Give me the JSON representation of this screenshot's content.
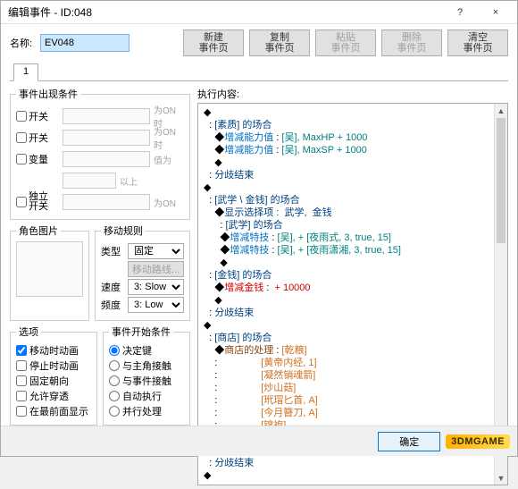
{
  "window": {
    "title": "编辑事件 - ID:048",
    "help": "?",
    "close": "×"
  },
  "name": {
    "label": "名称:",
    "value": "EV048"
  },
  "page_buttons": {
    "new": "新建\n事件页",
    "copy": "复制\n事件页",
    "paste": "粘贴\n事件页",
    "delete": "删除\n事件页",
    "clear": "清空\n事件页"
  },
  "tab": {
    "label": "1"
  },
  "conditions": {
    "legend": "事件出现条件",
    "switch1": {
      "label": "开关",
      "suffix": "为ON时"
    },
    "switch2": {
      "label": "开关",
      "suffix": "为ON时"
    },
    "variable": {
      "label": "变量",
      "suffix": "值为",
      "suffix2": "以上"
    },
    "selfswitch": {
      "label": "独立\n开关",
      "suffix": "为ON"
    }
  },
  "graphic": {
    "legend": "角色图片"
  },
  "movement": {
    "legend": "移动规则",
    "type": {
      "label": "类型",
      "value": "固定"
    },
    "route": {
      "label": "移动路线..."
    },
    "speed": {
      "label": "速度",
      "value": "3: Slow"
    },
    "freq": {
      "label": "频度",
      "value": "3: Low"
    }
  },
  "options": {
    "legend": "选项",
    "items": [
      "移动时动画",
      "停止时动画",
      "固定朝向",
      "允许穿透",
      "在最前面显示"
    ],
    "checked": [
      true,
      false,
      false,
      false,
      false
    ]
  },
  "trigger": {
    "legend": "事件开始条件",
    "items": [
      "决定键",
      "与主角接触",
      "与事件接触",
      "自动执行",
      "并行处理"
    ],
    "selected": 0
  },
  "exec": {
    "label": "执行内容:",
    "lines": [
      {
        "indent": 0,
        "pre": "◆",
        "segs": []
      },
      {
        "indent": 1,
        "pre": ": ",
        "segs": [
          [
            "[素质] 的场合",
            "col-dkblue"
          ]
        ]
      },
      {
        "indent": 2,
        "pre": "◆",
        "segs": [
          [
            "增减能力值",
            "col-blue"
          ],
          [
            " : ",
            ""
          ],
          [
            "[吴], MaxHP + 1000",
            "col-teal"
          ]
        ]
      },
      {
        "indent": 2,
        "pre": "◆",
        "segs": [
          [
            "增减能力值",
            "col-blue"
          ],
          [
            " : ",
            ""
          ],
          [
            "[吴], MaxSP + 1000",
            "col-teal"
          ]
        ]
      },
      {
        "indent": 2,
        "pre": "◆",
        "segs": []
      },
      {
        "indent": 1,
        "pre": ": ",
        "segs": [
          [
            "分歧结束",
            "col-dkblue"
          ]
        ]
      },
      {
        "indent": 0,
        "pre": "◆",
        "segs": []
      },
      {
        "indent": 1,
        "pre": ": ",
        "segs": [
          [
            "[武学 \\ 金钱] 的场合",
            "col-dkblue"
          ]
        ]
      },
      {
        "indent": 2,
        "pre": "◆",
        "segs": [
          [
            "显示选择项 :  武学,  金钱",
            "col-dkblue"
          ]
        ]
      },
      {
        "indent": 2,
        "pre": "  : ",
        "segs": [
          [
            "[武学] 的场合",
            "col-dkblue"
          ]
        ]
      },
      {
        "indent": 3,
        "pre": "◆",
        "segs": [
          [
            "增减特技",
            "col-blue"
          ],
          [
            " : ",
            ""
          ],
          [
            "[吴], + [夜雨式, 3, true, 15]",
            "col-teal"
          ]
        ]
      },
      {
        "indent": 3,
        "pre": "◆",
        "segs": [
          [
            "增减特技",
            "col-blue"
          ],
          [
            " : ",
            ""
          ],
          [
            "[吴], + [夜雨潇湘, 3, true, 15]",
            "col-teal"
          ]
        ]
      },
      {
        "indent": 3,
        "pre": "◆",
        "segs": []
      },
      {
        "indent": 1,
        "pre": ": ",
        "segs": [
          [
            "[金钱] 的场合",
            "col-dkblue"
          ]
        ]
      },
      {
        "indent": 2,
        "pre": "◆",
        "segs": [
          [
            "增减金钱",
            "col-red"
          ],
          [
            " :  ",
            ""
          ],
          [
            "+ 10000",
            "col-red"
          ]
        ]
      },
      {
        "indent": 2,
        "pre": "◆",
        "segs": []
      },
      {
        "indent": 1,
        "pre": ": ",
        "segs": [
          [
            "分歧结束",
            "col-dkblue"
          ]
        ]
      },
      {
        "indent": 0,
        "pre": "◆",
        "segs": []
      },
      {
        "indent": 1,
        "pre": ": ",
        "segs": [
          [
            "[商店] 的场合",
            "col-dkblue"
          ]
        ]
      },
      {
        "indent": 2,
        "pre": "◆",
        "segs": [
          [
            "商店的处理",
            "col-brown"
          ],
          [
            " : ",
            ""
          ],
          [
            "[乾粮]",
            "col-orange"
          ]
        ]
      },
      {
        "indent": 2,
        "pre": ": ",
        "segs": [
          [
            "               ",
            ""
          ],
          [
            "[黄帝内经, 1]",
            "col-orange"
          ]
        ]
      },
      {
        "indent": 2,
        "pre": ": ",
        "segs": [
          [
            "               ",
            ""
          ],
          [
            "[凝然销魂箭]",
            "col-orange"
          ]
        ]
      },
      {
        "indent": 2,
        "pre": ": ",
        "segs": [
          [
            "               ",
            ""
          ],
          [
            "[炒山菇]",
            "col-orange"
          ]
        ]
      },
      {
        "indent": 2,
        "pre": ": ",
        "segs": [
          [
            "               ",
            ""
          ],
          [
            "[玳瑁匕首, A]",
            "col-orange"
          ]
        ]
      },
      {
        "indent": 2,
        "pre": ": ",
        "segs": [
          [
            "               ",
            ""
          ],
          [
            "[今月簪刀, A]",
            "col-orange"
          ]
        ]
      },
      {
        "indent": 2,
        "pre": ": ",
        "segs": [
          [
            "               ",
            ""
          ],
          [
            "[锦袍]",
            "col-orange"
          ]
        ]
      },
      {
        "indent": 2,
        "pre": ": ",
        "segs": [
          [
            "               ",
            ""
          ],
          [
            "[八部天龙袍, A]",
            "col-orange"
          ]
        ]
      },
      {
        "indent": 2,
        "pre": "◆",
        "segs": []
      },
      {
        "indent": 1,
        "pre": ": ",
        "segs": [
          [
            "分歧结束",
            "col-dkblue"
          ]
        ]
      },
      {
        "indent": 0,
        "pre": "◆",
        "segs": []
      }
    ]
  },
  "footer": {
    "ok": "确定",
    "logo": "3DMGAME"
  }
}
